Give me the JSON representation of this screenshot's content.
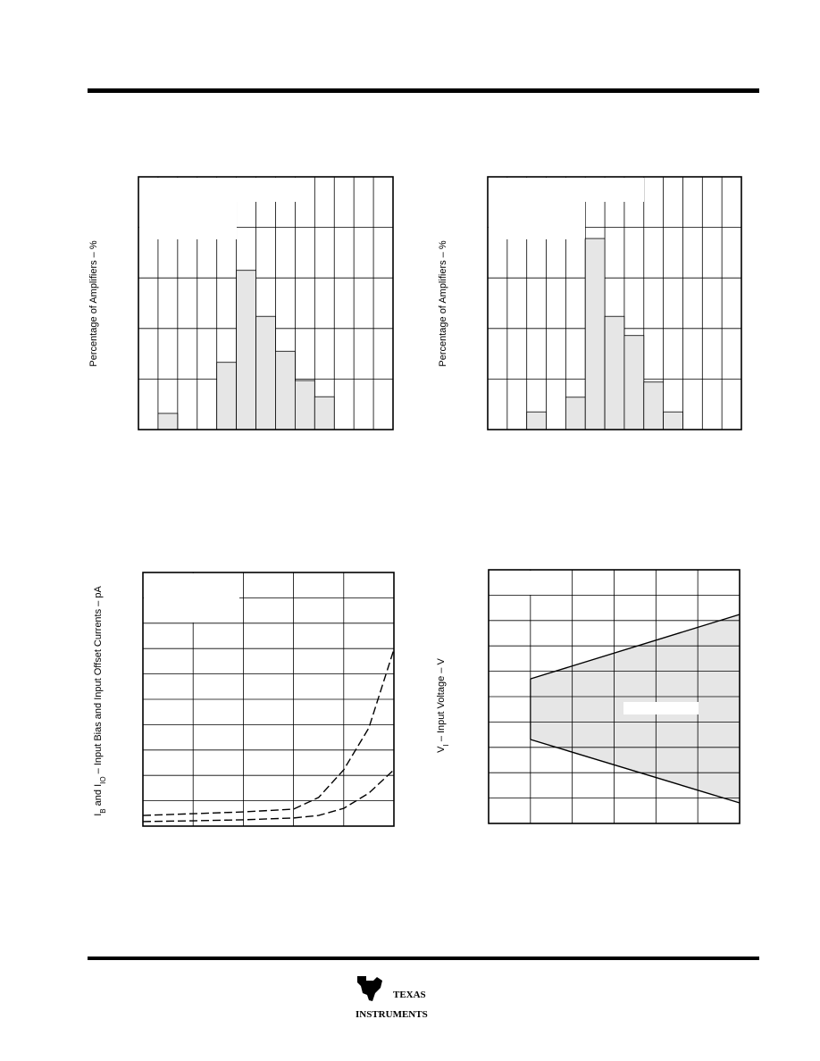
{
  "chart_data": [
    {
      "type": "bar",
      "ylabel": "Percentage of Amplifiers – %",
      "values": [
        0,
        0.32,
        0,
        0,
        1.33,
        3.15,
        2.24,
        1.55,
        0.97,
        0.65,
        0,
        0,
        0
      ],
      "ylim": [
        0,
        5
      ],
      "color": "#e6e6e6"
    },
    {
      "type": "bar",
      "ylabel": "Percentage of Amplifiers – %",
      "values": [
        0,
        0,
        0.35,
        0,
        0.64,
        3.78,
        2.24,
        1.86,
        0.94,
        0.35,
        0,
        0,
        0
      ],
      "ylim": [
        0,
        5
      ],
      "color": "#e6e6e6"
    },
    {
      "type": "line",
      "ylabel": [
        "I",
        "B",
        " and I",
        "IO",
        " – Input Bias and Input Offset Currents – pA"
      ],
      "x": [
        0,
        1,
        2,
        3,
        3.5,
        4,
        4.5,
        5
      ],
      "xlim": [
        0,
        5
      ],
      "ylim": [
        0,
        10
      ],
      "series": [
        {
          "values": [
            0.42,
            0.49,
            0.56,
            0.67,
            1.13,
            2.22,
            3.87,
            6.97
          ],
          "color": "#000",
          "dash": "9,4"
        },
        {
          "values": [
            0.18,
            0.21,
            0.25,
            0.32,
            0.42,
            0.7,
            1.3,
            2.22
          ],
          "color": "#000",
          "dash": "9,4"
        }
      ]
    },
    {
      "type": "area",
      "ylabel": [
        "V",
        "I",
        "  – Input Voltage  – V"
      ],
      "x": [
        1,
        6
      ],
      "xlim": [
        0,
        6
      ],
      "ylim": [
        0,
        10
      ],
      "color": "#e6e6e6",
      "series": [
        {
          "values": [
            5.7,
            8.24
          ],
          "color": "#000"
        },
        {
          "values": [
            3.31,
            0.81
          ],
          "color": "#000"
        }
      ]
    }
  ],
  "footer": {
    "logo_line1": "TEXAS",
    "logo_line2": "INSTRUMENTS"
  }
}
